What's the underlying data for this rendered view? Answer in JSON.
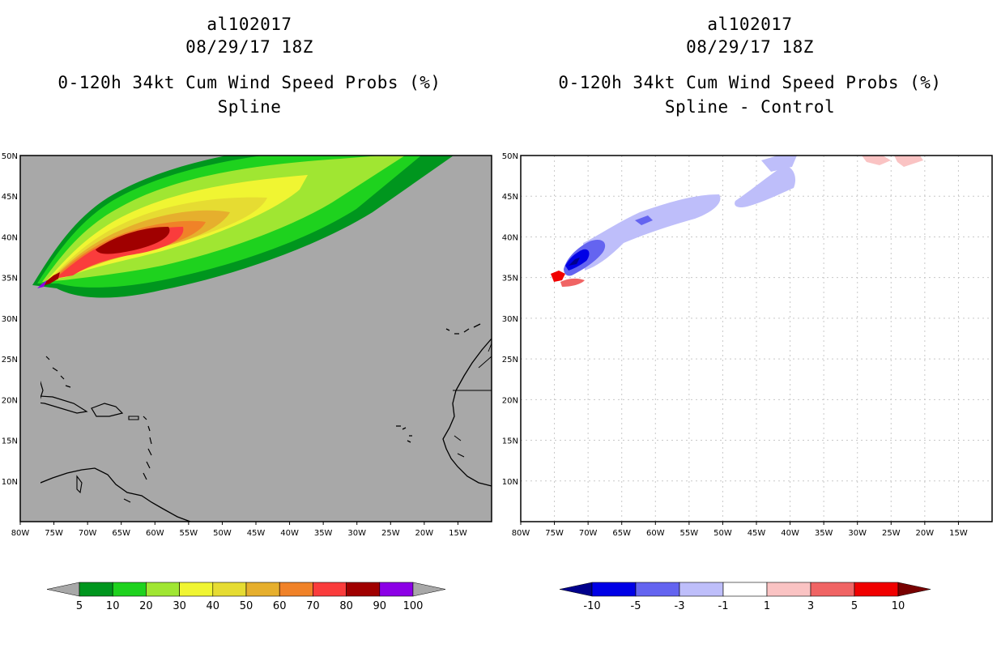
{
  "left_panel": {
    "title_id": "al102017",
    "title_date": "08/29/17 18Z",
    "title_product": "0-120h 34kt Cum Wind Speed Probs (%)",
    "title_variant": "Spline"
  },
  "right_panel": {
    "title_id": "al102017",
    "title_date": "08/29/17 18Z",
    "title_product": "0-120h 34kt Cum Wind Speed Probs (%)",
    "title_variant": "Spline - Control"
  },
  "colors": {
    "ocean_left": "#a8a8a8",
    "grid": "#c8c8c8"
  },
  "chart_data": [
    {
      "type": "heatmap",
      "title": "0-120h 34kt Cum Wind Speed Probs (%) Spline",
      "x_range": [
        -80,
        -10
      ],
      "y_range": [
        5,
        50
      ],
      "x_ticks": [
        "80W",
        "75W",
        "70W",
        "65W",
        "60W",
        "55W",
        "50W",
        "45W",
        "40W",
        "35W",
        "30W",
        "25W",
        "20W",
        "15W"
      ],
      "y_ticks": [
        "10N",
        "15N",
        "20N",
        "25N",
        "30N",
        "35N",
        "40N",
        "45N",
        "50N"
      ],
      "colorbar": {
        "labels": [
          "5",
          "10",
          "20",
          "30",
          "40",
          "50",
          "60",
          "70",
          "80",
          "90",
          "100"
        ],
        "colors": [
          "#00961e",
          "#1ed21e",
          "#a0e632",
          "#f0f532",
          "#e6dc32",
          "#e6af2d",
          "#f08228",
          "#fa3c3c",
          "#a00000",
          "#8c00e6"
        ]
      }
    },
    {
      "type": "heatmap",
      "title": "0-120h 34kt Cum Wind Speed Probs (%) Spline - Control",
      "x_range": [
        -80,
        -10
      ],
      "y_range": [
        5,
        50
      ],
      "x_ticks": [
        "80W",
        "75W",
        "70W",
        "65W",
        "60W",
        "55W",
        "50W",
        "45W",
        "40W",
        "35W",
        "30W",
        "25W",
        "20W",
        "15W"
      ],
      "y_ticks": [
        "10N",
        "15N",
        "20N",
        "25N",
        "30N",
        "35N",
        "40N",
        "45N",
        "50N"
      ],
      "colorbar": {
        "labels": [
          "-10",
          "-5",
          "-3",
          "-1",
          "1",
          "3",
          "5",
          "10"
        ],
        "colors": [
          "#0000e6",
          "#6464f0",
          "#bebefa",
          "#ffffff",
          "#fac3c3",
          "#f06464",
          "#f00000"
        ],
        "extend_low": "#00008c",
        "extend_high": "#780000"
      }
    }
  ]
}
